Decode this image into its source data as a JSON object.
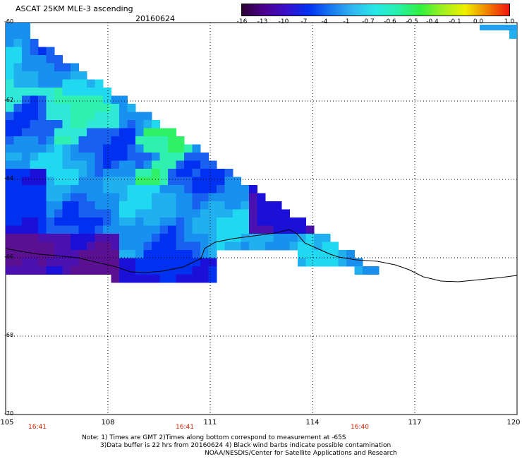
{
  "header": {
    "title": "ASCAT 25KM MLE-3 ascending",
    "date": "20160624"
  },
  "colorbar": {
    "labels": [
      "-16",
      "-13",
      "-10",
      "-7",
      "-4",
      "-1",
      "-0.7",
      "-0.6",
      "-0.5",
      "-0.4",
      "-0.1",
      "0.0",
      "1.0"
    ],
    "colors": [
      "#2a0030",
      "#4b008c",
      "#3a10c8",
      "#0030f0",
      "#1878f0",
      "#30b8f0",
      "#28e8e8",
      "#28f0a8",
      "#30f040",
      "#a0f020",
      "#f0f000",
      "#f08000",
      "#f01010"
    ]
  },
  "map": {
    "lat_labels": [
      "-60",
      "-62",
      "-64",
      "-66",
      "-68",
      "-70"
    ],
    "lon_labels": [
      "105",
      "108",
      "111",
      "114",
      "117",
      "120"
    ],
    "time_labels": [
      "16:41",
      "16:41",
      "16:40"
    ],
    "coast_color": "#000000"
  },
  "footer": {
    "line1": "Note: 1) Times are GMT 2)Times along bottom correspond to measurement at -65S",
    "line2": "3)Data buffer is 22 hrs from 20160624 4) Black wind barbs indicate possible contamination",
    "line3": "NOAA/NESDIS/Center for Satellite Applications and Research"
  }
}
